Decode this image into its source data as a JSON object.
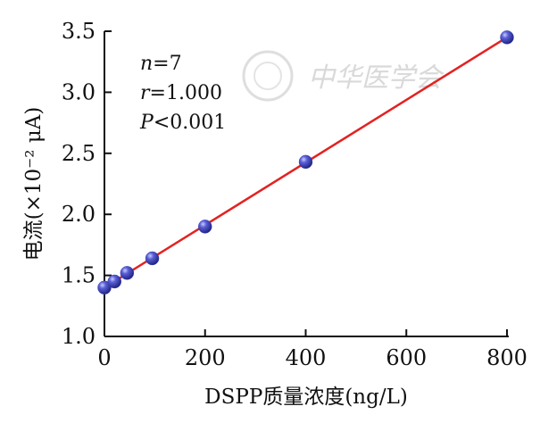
{
  "chart_data": {
    "type": "scatter",
    "title": "",
    "xlabel": "DSPP质量浓度(ng/L)",
    "ylabel": "电流(×10⁻² μA)",
    "xlim": [
      0,
      800
    ],
    "ylim": [
      1.0,
      3.5
    ],
    "xticks": [
      0,
      200,
      400,
      600,
      800
    ],
    "yticks": [
      1.0,
      1.5,
      2.0,
      2.5,
      3.0,
      3.5
    ],
    "xtick_labels": [
      "0",
      "200",
      "400",
      "600",
      "800"
    ],
    "ytick_labels": [
      "1.0",
      "1.5",
      "2.0",
      "2.5",
      "3.0",
      "3.5"
    ],
    "grid": false,
    "series": [
      {
        "points": [
          {
            "x": 0,
            "y": 1.4
          },
          {
            "x": 20,
            "y": 1.45
          },
          {
            "x": 45,
            "y": 1.52
          },
          {
            "x": 95,
            "y": 1.64
          },
          {
            "x": 200,
            "y": 1.9
          },
          {
            "x": 400,
            "y": 2.43
          },
          {
            "x": 800,
            "y": 3.45
          }
        ],
        "marker_color": "#3a3fb5"
      }
    ],
    "fit_line": {
      "x": [
        0,
        800
      ],
      "y": [
        1.4,
        3.45
      ],
      "color": "#e32222"
    },
    "annotations": {
      "n_label": "n",
      "n_value": "=7",
      "r_label": "r",
      "r_value": "=1.000",
      "p_label": "P",
      "p_value": "<0.001"
    },
    "watermark": "中华医学会"
  }
}
